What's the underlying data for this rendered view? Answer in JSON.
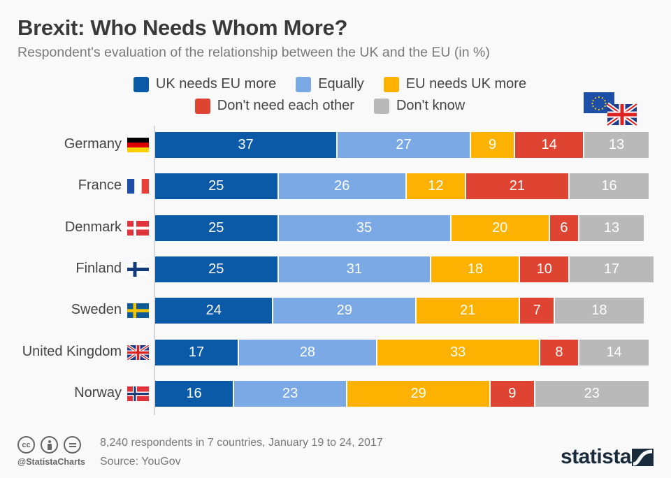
{
  "header": {
    "title": "Brexit: Who Needs Whom More?",
    "subtitle": "Respondent's evaluation of the relationship between the UK and the EU (in %)"
  },
  "corner_icon": "eu-and-uk-flags-icon",
  "footer": {
    "license_icons": [
      "cc-icon",
      "attribution-icon",
      "no-derivatives-icon"
    ],
    "handle": "@StatistaCharts",
    "note": "8,240 respondents in 7 countries, January 19 to 24, 2017",
    "source": "Source: YouGov",
    "brand": "statista"
  },
  "chart_data": {
    "type": "bar",
    "orientation": "horizontal",
    "stacked": true,
    "title": "Brexit: Who Needs Whom More?",
    "subtitle": "Respondent's evaluation of the relationship between the UK and the EU (in %)",
    "xlabel": "",
    "ylabel": "",
    "unit": "%",
    "legend_position": "top",
    "grid": false,
    "categories": [
      "Germany",
      "France",
      "Denmark",
      "Finland",
      "Sweden",
      "United Kingdom",
      "Norway"
    ],
    "category_flags": [
      "germany-flag-icon",
      "france-flag-icon",
      "denmark-flag-icon",
      "finland-flag-icon",
      "sweden-flag-icon",
      "uk-flag-icon",
      "norway-flag-icon"
    ],
    "series": [
      {
        "name": "UK needs EU more",
        "color": "#0b5aa8",
        "values": [
          37,
          25,
          25,
          25,
          24,
          17,
          16
        ]
      },
      {
        "name": "Equally",
        "color": "#7ba9e6",
        "values": [
          27,
          26,
          35,
          31,
          29,
          28,
          23
        ]
      },
      {
        "name": "EU needs UK more",
        "color": "#fdb100",
        "values": [
          9,
          12,
          20,
          18,
          21,
          33,
          29
        ]
      },
      {
        "name": "Don't need each other",
        "color": "#de4431",
        "values": [
          14,
          21,
          6,
          10,
          7,
          8,
          9
        ]
      },
      {
        "name": "Don't know",
        "color": "#b9b9b9",
        "values": [
          13,
          16,
          13,
          17,
          18,
          14,
          23
        ]
      }
    ]
  }
}
